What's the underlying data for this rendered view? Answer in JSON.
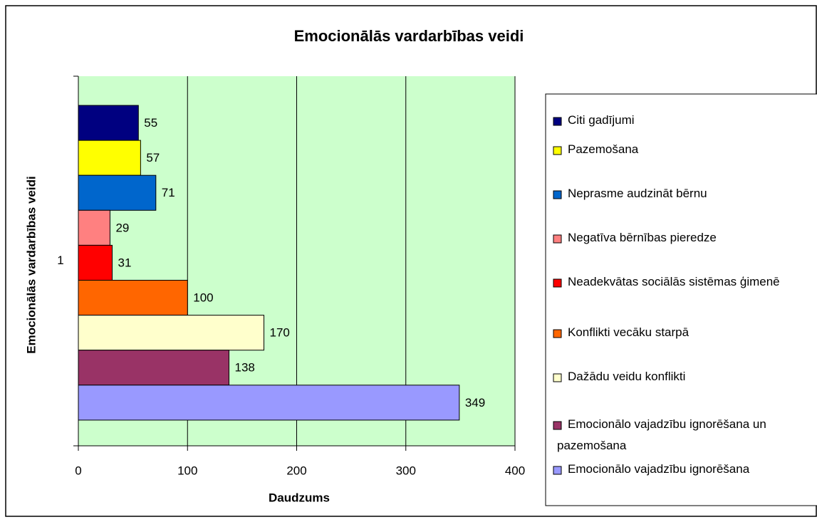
{
  "chart_data": {
    "type": "bar",
    "orientation": "horizontal",
    "title": "Emocionālās vardarbības veidi",
    "x_label": "Daudzums",
    "y_label": "Emocionālās vardarbības veidi",
    "categories": [
      "1"
    ],
    "xlim": [
      0,
      400
    ],
    "xticks": [
      0,
      100,
      200,
      300,
      400
    ],
    "grid": true,
    "legend": "right",
    "series": [
      {
        "name": "Citi gadījumi",
        "color": "#000080",
        "values": [
          55
        ]
      },
      {
        "name": "Pazemošana",
        "color": "#ffff00",
        "values": [
          57
        ]
      },
      {
        "name": "Neprasme audzināt bērnu",
        "color": "#0066cc",
        "values": [
          71
        ]
      },
      {
        "name": "Negatīva bērnības pieredze",
        "color": "#ff8080",
        "values": [
          29
        ]
      },
      {
        "name": "Neadekvātas sociālās sistēmas ģimenē",
        "color": "#ff0000",
        "values": [
          31
        ]
      },
      {
        "name": "Konflikti vecāku starpā",
        "color": "#ff6600",
        "values": [
          100
        ]
      },
      {
        "name": "Dažādu veidu konflikti",
        "color": "#ffffcc",
        "values": [
          170
        ]
      },
      {
        "name": "Emocionālo vajadzību ignorēšana un pazemošana",
        "color": "#993366",
        "values": [
          138
        ]
      },
      {
        "name": "Emocionālo vajadzību ignorēšana",
        "color": "#9999ff",
        "values": [
          349
        ]
      }
    ]
  }
}
